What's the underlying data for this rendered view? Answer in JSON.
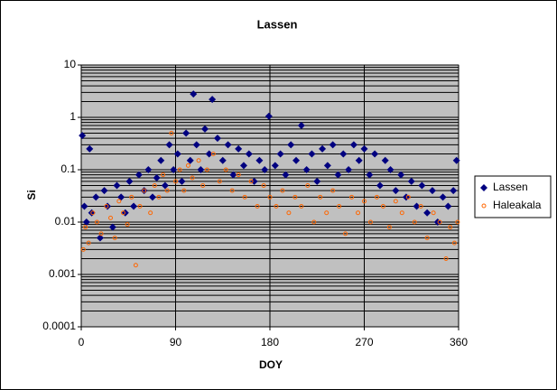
{
  "chart_data": {
    "type": "scatter",
    "title": "Lassen",
    "x_label": "DOY",
    "y_label": "Si",
    "log_y": true,
    "grid": true,
    "legend": "right",
    "plot_background": "#c0c0c0",
    "xlim": [
      0,
      360
    ],
    "xticks": [
      0,
      90,
      180,
      270,
      360
    ],
    "ylim": [
      0.0001,
      10
    ],
    "yticks": [
      0.0001,
      0.001,
      0.01,
      0.1,
      1,
      10
    ],
    "series": [
      {
        "name": "Lassen",
        "color": "#000080",
        "marker": "diamond",
        "x": [
          1,
          3,
          5,
          8,
          10,
          14,
          18,
          22,
          25,
          30,
          34,
          38,
          42,
          46,
          50,
          55,
          60,
          64,
          68,
          72,
          76,
          80,
          84,
          88,
          92,
          96,
          100,
          104,
          107,
          110,
          114,
          118,
          122,
          125,
          130,
          135,
          140,
          145,
          150,
          155,
          160,
          165,
          170,
          175,
          179,
          185,
          190,
          195,
          200,
          205,
          210,
          215,
          220,
          225,
          230,
          235,
          240,
          245,
          250,
          255,
          260,
          265,
          270,
          275,
          280,
          285,
          290,
          295,
          300,
          305,
          310,
          315,
          320,
          325,
          330,
          335,
          340,
          345,
          350,
          355,
          358
        ],
        "values": [
          0.45,
          0.02,
          0.01,
          0.25,
          0.015,
          0.03,
          0.005,
          0.04,
          0.02,
          0.008,
          0.05,
          0.03,
          0.015,
          0.06,
          0.02,
          0.08,
          0.04,
          0.1,
          0.03,
          0.07,
          0.15,
          0.05,
          0.3,
          0.1,
          0.2,
          0.06,
          0.5,
          0.15,
          2.8,
          0.3,
          0.1,
          0.6,
          0.2,
          2.2,
          0.4,
          0.15,
          0.3,
          0.08,
          0.25,
          0.12,
          0.2,
          0.06,
          0.15,
          0.1,
          1.05,
          0.12,
          0.2,
          0.08,
          0.3,
          0.15,
          0.7,
          0.1,
          0.2,
          0.06,
          0.25,
          0.12,
          0.3,
          0.08,
          0.2,
          0.1,
          0.3,
          0.15,
          0.25,
          0.08,
          0.2,
          0.05,
          0.15,
          0.1,
          0.04,
          0.08,
          0.03,
          0.06,
          0.02,
          0.05,
          0.015,
          0.04,
          0.01,
          0.03,
          0.02,
          0.04,
          0.15
        ]
      },
      {
        "name": "Haleakala",
        "color": "#ff6600",
        "marker": "circle",
        "x": [
          2,
          4,
          7,
          11,
          15,
          19,
          24,
          28,
          32,
          36,
          40,
          44,
          48,
          52,
          56,
          60,
          66,
          70,
          74,
          78,
          82,
          86,
          90,
          94,
          98,
          102,
          106,
          112,
          116,
          120,
          126,
          132,
          138,
          144,
          150,
          156,
          162,
          168,
          174,
          180,
          186,
          192,
          198,
          204,
          210,
          216,
          222,
          228,
          234,
          240,
          246,
          252,
          258,
          264,
          270,
          276,
          282,
          288,
          294,
          300,
          306,
          312,
          318,
          324,
          330,
          336,
          342,
          348,
          352,
          356,
          359
        ],
        "values": [
          0.003,
          0.008,
          0.004,
          0.015,
          0.01,
          0.006,
          0.02,
          0.012,
          0.005,
          0.025,
          0.015,
          0.009,
          0.03,
          0.0015,
          0.02,
          0.04,
          0.015,
          0.05,
          0.03,
          0.08,
          0.04,
          0.5,
          0.06,
          0.1,
          0.04,
          0.12,
          0.07,
          0.15,
          0.05,
          0.1,
          0.2,
          0.06,
          0.1,
          0.04,
          0.08,
          0.03,
          0.06,
          0.02,
          0.05,
          0.03,
          0.02,
          0.04,
          0.015,
          0.03,
          0.02,
          0.05,
          0.01,
          0.03,
          0.015,
          0.04,
          0.02,
          0.006,
          0.03,
          0.015,
          0.025,
          0.01,
          0.03,
          0.02,
          0.008,
          0.025,
          0.015,
          0.03,
          0.01,
          0.02,
          0.005,
          0.015,
          0.01,
          0.002,
          0.008,
          0.004,
          0.01
        ]
      }
    ]
  }
}
